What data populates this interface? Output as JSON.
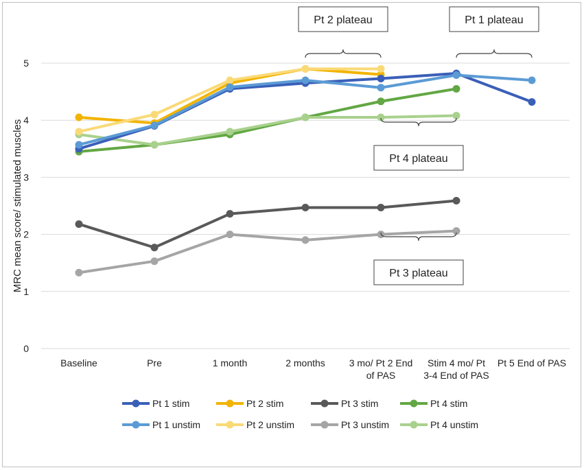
{
  "chart_data": {
    "type": "line",
    "title": "",
    "xlabel": "",
    "ylabel": "MRC mean score/ stimulated muscles",
    "ylim": [
      0,
      5
    ],
    "yticks": [
      0,
      1,
      2,
      3,
      4,
      5
    ],
    "grid": true,
    "legend_position": "bottom",
    "categories": [
      {
        "label": "Baseline",
        "lines": [
          "Baseline"
        ]
      },
      {
        "label": "Pre",
        "lines": [
          "Pre"
        ]
      },
      {
        "label": "1 month",
        "lines": [
          "1 month"
        ]
      },
      {
        "label": "2 months",
        "lines": [
          "2 months"
        ]
      },
      {
        "label": "3 mo/ Pt 2 End of PAS",
        "lines": [
          "3 mo/ Pt 2 End",
          "of PAS"
        ]
      },
      {
        "label": "Stim 4 mo/ Pt 3-4 End of PAS",
        "lines": [
          "Stim 4 mo/ Pt",
          "3-4 End of PAS"
        ]
      },
      {
        "label": "Pt 5 End of PAS",
        "lines": [
          "Pt 5 End of PAS"
        ]
      }
    ],
    "series": [
      {
        "name": "Pt 1 stim",
        "color": "#3a5fb8",
        "values": [
          3.5,
          3.9,
          4.55,
          4.65,
          4.73,
          4.82,
          4.32
        ]
      },
      {
        "name": "Pt 2 stim",
        "color": "#f2b400",
        "values": [
          4.05,
          3.95,
          4.65,
          4.9,
          4.8,
          null,
          null
        ]
      },
      {
        "name": "Pt 3 stim",
        "color": "#595959",
        "values": [
          2.18,
          1.77,
          2.36,
          2.47,
          2.47,
          2.59,
          null
        ]
      },
      {
        "name": "Pt 4 stim",
        "color": "#62a744",
        "values": [
          3.45,
          3.57,
          3.75,
          4.05,
          4.33,
          4.55,
          null
        ]
      },
      {
        "name": "Pt 1 unstim",
        "color": "#5b9bd5",
        "values": [
          3.57,
          3.91,
          4.58,
          4.7,
          4.57,
          4.79,
          4.7
        ]
      },
      {
        "name": "Pt 2 unstim",
        "color": "#fad977",
        "values": [
          3.8,
          4.1,
          4.7,
          4.9,
          4.9,
          null,
          null
        ]
      },
      {
        "name": "Pt 3 unstim",
        "color": "#a5a5a5",
        "values": [
          1.33,
          1.53,
          2.0,
          1.9,
          2.0,
          2.06,
          null
        ]
      },
      {
        "name": "Pt 4 unstim",
        "color": "#a9d18e",
        "values": [
          3.75,
          3.57,
          3.8,
          4.05,
          4.05,
          4.08,
          null
        ]
      }
    ],
    "annotations": [
      {
        "id": "pt2",
        "text": "Pt 2 plateau",
        "from_category": 3,
        "to_category": 4,
        "side": "above"
      },
      {
        "id": "pt1",
        "text": "Pt 1 plateau",
        "from_category": 5,
        "to_category": 6,
        "side": "above"
      },
      {
        "id": "pt4",
        "text": "Pt 4 plateau",
        "from_category": 4,
        "to_category": 5,
        "side": "below"
      },
      {
        "id": "pt3",
        "text": "Pt 3 plateau",
        "from_category": 4,
        "to_category": 5,
        "side": "below"
      }
    ]
  }
}
